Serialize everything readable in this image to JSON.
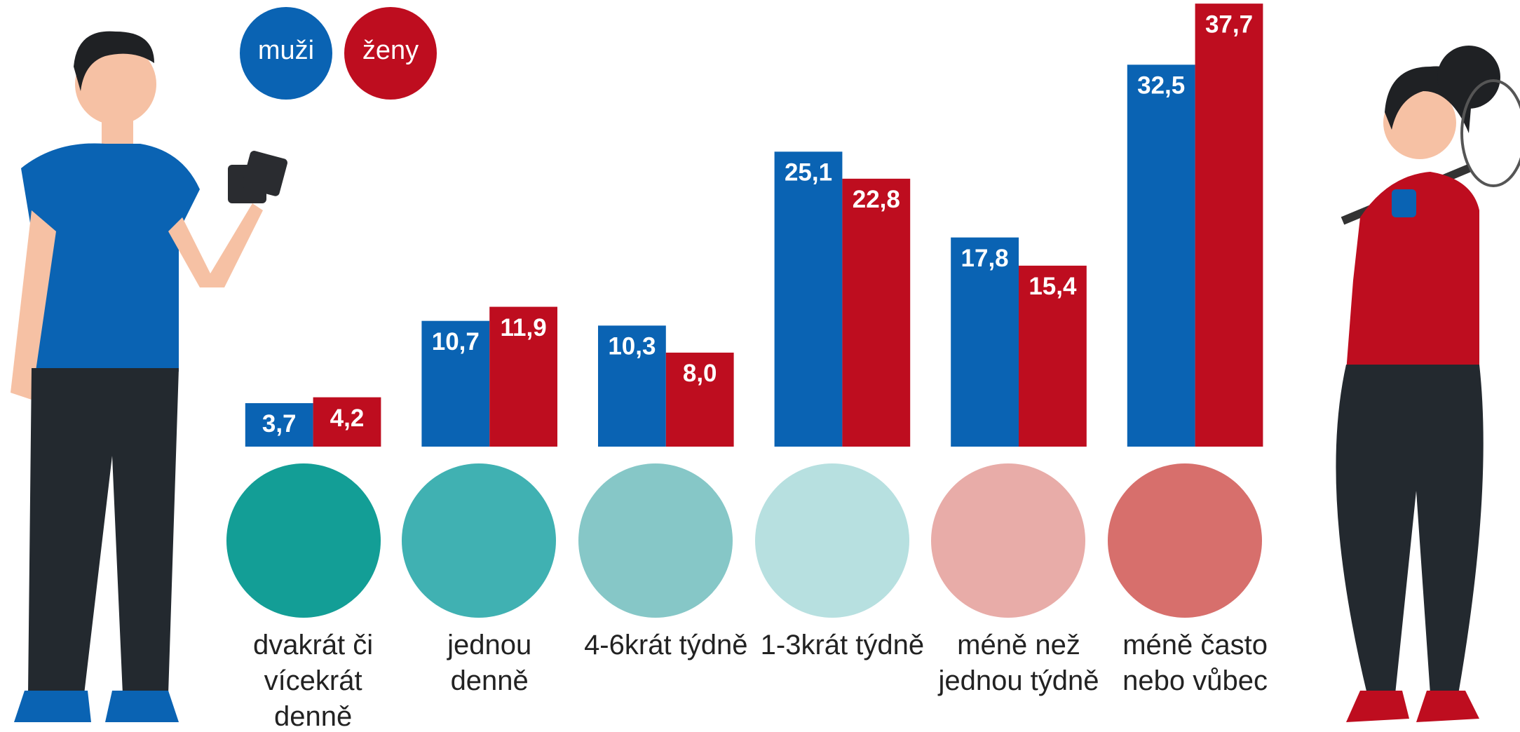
{
  "chart_data": {
    "type": "bar",
    "categories": [
      "dvakrát či vícekrát denně",
      "jednou denně",
      "4-6krát týdně",
      "1-3krát týdně",
      "méně než jednou týdně",
      "méně často nebo vůbec"
    ],
    "series": [
      {
        "name": "muži",
        "color": "#0a63b3",
        "values": [
          3.7,
          10.7,
          10.3,
          25.1,
          17.8,
          32.5
        ],
        "value_labels": [
          "3,7",
          "10,7",
          "10,3",
          "25,1",
          "17,8",
          "32,5"
        ]
      },
      {
        "name": "ženy",
        "color": "#be0d1f",
        "values": [
          4.2,
          11.9,
          8.0,
          22.8,
          15.4,
          37.7
        ],
        "value_labels": [
          "4,2",
          "11,9",
          "8,0",
          "22,8",
          "15,4",
          "37,7"
        ]
      }
    ]
  }
}
